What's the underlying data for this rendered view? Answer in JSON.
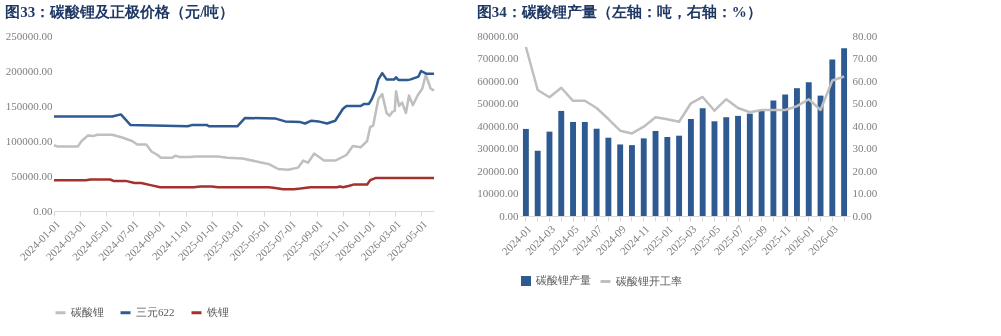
{
  "chart_data": [
    {
      "type": "line",
      "title": "图33：碳酸锂及正极价格（元/吨）",
      "legend": "bottom",
      "xlim": [
        "2024-01-01",
        "2026-05-31"
      ],
      "xticks": [
        "2024-01-01",
        "2024-03-01",
        "2024-05-01",
        "2024-07-01",
        "2024-09-01",
        "2024-11-01",
        "2025-01-01",
        "2025-03-01",
        "2025-05-01",
        "2025-07-01",
        "2025-09-01",
        "2025-11-01",
        "2026-01-01",
        "2026-03-01",
        "2026-05-01"
      ],
      "ylim": [
        0,
        250000
      ],
      "yticks": [
        {
          "value": 0,
          "label": "0.00"
        },
        {
          "value": 50000,
          "label": "50000.00"
        },
        {
          "value": 100000,
          "label": "100000.00"
        },
        {
          "value": 150000,
          "label": "150000.00"
        },
        {
          "value": 200000,
          "label": "200000.00"
        },
        {
          "value": 250000,
          "label": "250000.00"
        }
      ],
      "series": [
        {
          "name": "碳酸锂",
          "color": "#bfbfbf",
          "x": [
            "2024-01-01",
            "2024-01-10",
            "2024-02-25",
            "2024-03-05",
            "2024-03-20",
            "2024-04-01",
            "2024-04-10",
            "2024-05-15",
            "2024-06-07",
            "2024-06-30",
            "2024-07-12",
            "2024-08-02",
            "2024-08-14",
            "2024-08-28",
            "2024-09-05",
            "2024-10-01",
            "2024-10-08",
            "2024-10-20",
            "2024-11-10",
            "2024-11-25",
            "2025-01-15",
            "2025-02-06",
            "2025-03-13",
            "2025-04-20",
            "2025-05-13",
            "2025-06-04",
            "2025-06-27",
            "2025-07-20",
            "2025-08-01",
            "2025-08-12",
            "2025-08-26",
            "2025-09-18",
            "2025-10-14",
            "2025-11-09",
            "2025-11-24",
            "2025-12-12",
            "2025-12-27",
            "2026-01-03",
            "2026-01-10",
            "2026-01-22",
            "2026-01-31",
            "2026-02-10",
            "2026-02-17",
            "2026-02-24",
            "2026-03-01",
            "2026-03-04",
            "2026-03-11",
            "2026-03-18",
            "2026-03-27",
            "2026-04-03",
            "2026-04-12",
            "2026-04-23",
            "2026-05-04",
            "2026-05-12",
            "2026-05-23",
            "2026-05-31"
          ],
          "values": [
            94000,
            92000,
            92000,
            100000,
            108000,
            107000,
            109000,
            109000,
            105000,
            100000,
            95000,
            95000,
            85000,
            80000,
            76000,
            76000,
            79000,
            77000,
            77000,
            78000,
            78000,
            76000,
            75000,
            70000,
            67000,
            60000,
            59000,
            62000,
            72000,
            69000,
            82000,
            72000,
            72000,
            80000,
            93000,
            91000,
            100000,
            120000,
            122000,
            160000,
            167000,
            140000,
            136000,
            142000,
            143000,
            171000,
            150000,
            155000,
            140000,
            165000,
            151000,
            165000,
            175000,
            195000,
            175000,
            172000
          ]
        },
        {
          "name": "三元622",
          "color": "#2e5a91",
          "x": [
            "2024-01-01",
            "2024-05-15",
            "2024-06-04",
            "2024-06-13",
            "2024-06-26",
            "2024-08-19",
            "2024-11-06",
            "2024-11-17",
            "2024-12-20",
            "2024-12-25",
            "2025-03-01",
            "2025-03-19",
            "2025-05-29",
            "2025-06-20",
            "2025-07-25",
            "2025-08-05",
            "2025-08-20",
            "2025-09-05",
            "2025-09-25",
            "2025-10-14",
            "2025-11-01",
            "2025-11-09",
            "2025-12-12",
            "2025-12-20",
            "2025-12-31",
            "2026-01-07",
            "2026-01-15",
            "2026-01-22",
            "2026-01-31",
            "2026-02-10",
            "2026-02-28",
            "2026-03-04",
            "2026-03-10",
            "2026-03-31",
            "2026-04-07",
            "2026-04-25",
            "2026-05-01",
            "2026-05-14",
            "2026-05-31"
          ],
          "values": [
            135000,
            135000,
            138000,
            132000,
            123000,
            122000,
            121000,
            123000,
            123000,
            121000,
            121000,
            133000,
            132000,
            128000,
            127000,
            125000,
            129000,
            128000,
            125000,
            129000,
            146000,
            150000,
            150000,
            153000,
            153000,
            160000,
            172000,
            188000,
            197000,
            188000,
            188000,
            191000,
            187000,
            187000,
            188000,
            192000,
            200000,
            196000,
            196000
          ]
        },
        {
          "name": "铁锂",
          "color": "#a5312d",
          "x": [
            "2024-01-01",
            "2024-03-15",
            "2024-03-25",
            "2024-05-10",
            "2024-05-18",
            "2024-06-15",
            "2024-07-06",
            "2024-07-21",
            "2024-08-12",
            "2024-09-03",
            "2024-11-20",
            "2024-12-05",
            "2025-01-01",
            "2025-01-15",
            "2025-05-13",
            "2025-05-28",
            "2025-06-15",
            "2025-07-10",
            "2025-07-25",
            "2025-08-18",
            "2025-10-18",
            "2025-10-25",
            "2025-11-01",
            "2025-11-16",
            "2025-11-27",
            "2025-12-27",
            "2026-01-03",
            "2026-01-15",
            "2026-05-31"
          ],
          "values": [
            44000,
            44000,
            45000,
            45000,
            43000,
            43000,
            40000,
            40000,
            37000,
            34000,
            34000,
            35000,
            35000,
            34000,
            34000,
            33000,
            31000,
            31000,
            32000,
            34000,
            34000,
            35000,
            34000,
            36000,
            38000,
            38000,
            44000,
            47000,
            47000
          ]
        }
      ]
    },
    {
      "type": "bar",
      "title": "图34：碳酸锂产量（左轴：吨，右轴：%）",
      "legend": "bottom",
      "categories": [
        "2024-01",
        null,
        "2024-03",
        null,
        "2024-05",
        null,
        "2024-07",
        null,
        "2024-09",
        null,
        "2024-11",
        null,
        "2025-01",
        null,
        "2025-03",
        null,
        "2025-05",
        null,
        "2025-07",
        null,
        "2025-09",
        null,
        "2025-11",
        null,
        "2026-01",
        null,
        "2026-03",
        null
      ],
      "ylim": [
        0,
        80000
      ],
      "yticks": [
        {
          "value": 0,
          "label": "0.00"
        },
        {
          "value": 10000,
          "label": "10000.00"
        },
        {
          "value": 20000,
          "label": "20000.00"
        },
        {
          "value": 30000,
          "label": "30000.00"
        },
        {
          "value": 40000,
          "label": "40000.00"
        },
        {
          "value": 50000,
          "label": "50000.00"
        },
        {
          "value": 60000,
          "label": "60000.00"
        },
        {
          "value": 70000,
          "label": "70000.00"
        },
        {
          "value": 80000,
          "label": "80000.00"
        }
      ],
      "y2lim": [
        0,
        80
      ],
      "y2ticks": [
        {
          "value": 0,
          "label": "0.00"
        },
        {
          "value": 10,
          "label": "10.00"
        },
        {
          "value": 20,
          "label": "20.00"
        },
        {
          "value": 30,
          "label": "30.00"
        },
        {
          "value": 40,
          "label": "40.00"
        },
        {
          "value": 50,
          "label": "50.00"
        },
        {
          "value": 60,
          "label": "60.00"
        },
        {
          "value": 70,
          "label": "70.00"
        },
        {
          "value": 80,
          "label": "80.00"
        }
      ],
      "series": [
        {
          "name": "碳酸锂产量",
          "color": "#2e5a91",
          "values": [
            38700,
            29000,
            37500,
            46700,
            41800,
            41800,
            38800,
            34800,
            31800,
            31500,
            34500,
            37800,
            35100,
            35700,
            43100,
            47900,
            42100,
            43900,
            44500,
            45500,
            47000,
            51300,
            54000,
            56800,
            59500,
            53500,
            69600,
            74600
          ]
        },
        {
          "name": "碳酸锂开工率",
          "type": "line",
          "axis": "y2",
          "color": "#bfbfbf",
          "values": [
            75.1,
            56,
            52.8,
            57,
            51.2,
            51.2,
            48,
            43.1,
            37.9,
            36.7,
            39.7,
            43.9,
            43,
            41.9,
            50.1,
            52.9,
            46.8,
            51.9,
            48,
            46.1,
            47.1,
            47.1,
            47.1,
            48.8,
            51.9,
            47.1,
            60.2,
            62
          ]
        }
      ]
    }
  ]
}
